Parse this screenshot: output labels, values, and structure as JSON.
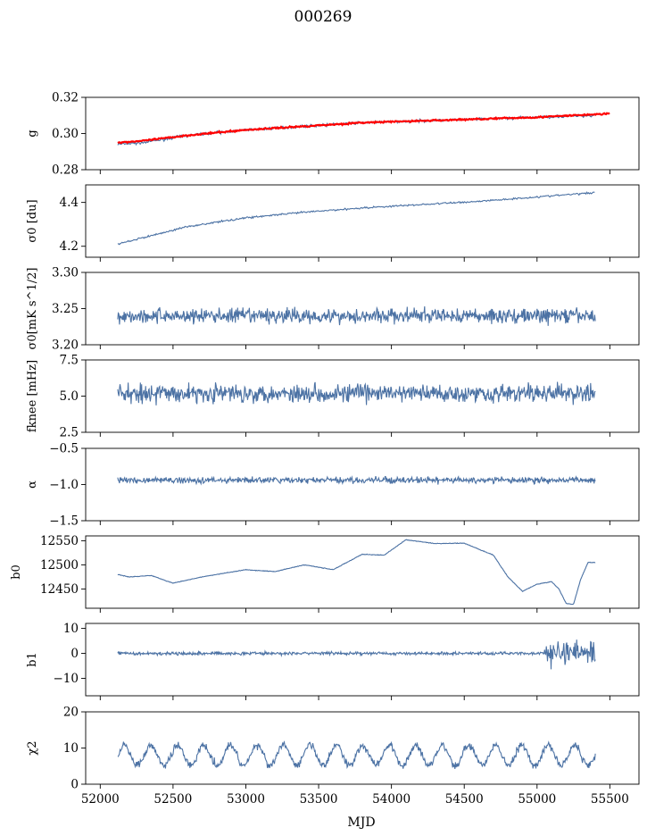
{
  "title": "000269",
  "colors": {
    "series": "#4c72a4",
    "model": "#ff0000",
    "axis": "#000000"
  },
  "chart_data": [
    {
      "type": "line",
      "ylabel": "g",
      "ylim": [
        0.28,
        0.32
      ],
      "yticks": [
        "0.28",
        "0.30",
        "0.32"
      ],
      "ytick_values": [
        0.28,
        0.3,
        0.32
      ],
      "series": [
        {
          "name": "g",
          "color": "#4c72a4",
          "x": [
            52120,
            52300,
            52600,
            53000,
            53400,
            53800,
            54200,
            54600,
            55000,
            55400
          ],
          "y": [
            0.294,
            0.295,
            0.299,
            0.302,
            0.304,
            0.306,
            0.307,
            0.308,
            0.309,
            0.31
          ]
        },
        {
          "name": "g fit",
          "color": "#ff0000",
          "x": [
            52120,
            52300,
            52600,
            53000,
            53400,
            53800,
            54200,
            54600,
            55000,
            55500
          ],
          "y": [
            0.295,
            0.296,
            0.299,
            0.302,
            0.304,
            0.306,
            0.307,
            0.308,
            0.309,
            0.311
          ]
        }
      ]
    },
    {
      "type": "line",
      "ylabel": "σ0 [du]",
      "ylim": [
        4.15,
        4.48
      ],
      "yticks": [
        "4.2",
        "4.4"
      ],
      "ytick_values": [
        4.2,
        4.4
      ],
      "series": [
        {
          "name": "sigma0",
          "color": "#4c72a4",
          "x": [
            52120,
            52300,
            52600,
            53000,
            53400,
            53800,
            54200,
            54600,
            55000,
            55400
          ],
          "y": [
            4.21,
            4.24,
            4.29,
            4.33,
            4.355,
            4.375,
            4.39,
            4.405,
            4.425,
            4.445
          ]
        }
      ]
    },
    {
      "type": "line",
      "ylabel": "σ0[mK s^1/2]",
      "ylim": [
        3.2,
        3.3
      ],
      "yticks": [
        "3.20",
        "3.25",
        "3.30"
      ],
      "ytick_values": [
        3.2,
        3.25,
        3.3
      ],
      "series": [
        {
          "name": "white noise",
          "color": "#4c72a4",
          "x": [
            52120,
            55400
          ],
          "mean": 3.24,
          "spread": 0.01
        }
      ]
    },
    {
      "type": "line",
      "ylabel": "fknee [mHz]",
      "ylim": [
        2.5,
        7.5
      ],
      "yticks": [
        "2.5",
        "5.0",
        "7.5"
      ],
      "ytick_values": [
        2.5,
        5.0,
        7.5
      ],
      "series": [
        {
          "name": "fknee",
          "color": "#4c72a4",
          "x": [
            52120,
            55400
          ],
          "mean": 5.2,
          "spread": 0.6
        }
      ]
    },
    {
      "type": "line",
      "ylabel": "α",
      "ylim": [
        -1.5,
        -0.5
      ],
      "yticks": [
        "−1.5",
        "−1.0",
        "−0.5"
      ],
      "ytick_values": [
        -1.5,
        -1.0,
        -0.5
      ],
      "series": [
        {
          "name": "alpha",
          "color": "#4c72a4",
          "x": [
            52120,
            55400
          ],
          "mean": -0.94,
          "spread": 0.04
        }
      ]
    },
    {
      "type": "line",
      "ylabel": "b0",
      "ylim": [
        12410,
        12560
      ],
      "yticks": [
        "12450",
        "12500",
        "12550"
      ],
      "ytick_values": [
        12450,
        12500,
        12550
      ],
      "series": [
        {
          "name": "b0",
          "color": "#4c72a4",
          "x": [
            52120,
            52200,
            52350,
            52500,
            52700,
            53000,
            53200,
            53400,
            53600,
            53800,
            53950,
            54100,
            54300,
            54500,
            54700,
            54800,
            54900,
            55000,
            55100,
            55150,
            55200,
            55250,
            55300,
            55350,
            55400
          ],
          "y": [
            12480,
            12475,
            12478,
            12462,
            12475,
            12490,
            12486,
            12500,
            12490,
            12522,
            12520,
            12552,
            12544,
            12545,
            12520,
            12475,
            12445,
            12460,
            12465,
            12450,
            12420,
            12418,
            12470,
            12505,
            12505
          ]
        }
      ]
    },
    {
      "type": "line",
      "ylabel": "b1",
      "ylim": [
        -17,
        12
      ],
      "yticks": [
        "−10",
        "0",
        "10"
      ],
      "ytick_values": [
        -10,
        0,
        10
      ],
      "series": [
        {
          "name": "b1",
          "color": "#4c72a4",
          "x": [
            52120,
            55400
          ],
          "mean": 0.0,
          "spread": 0.6
        }
      ]
    },
    {
      "type": "line",
      "ylabel": "χ2",
      "ylim": [
        0,
        20
      ],
      "yticks": [
        "0",
        "10",
        "20"
      ],
      "ytick_values": [
        0,
        10,
        20
      ],
      "series": [
        {
          "name": "chi2",
          "color": "#4c72a4",
          "x": [
            52120,
            55400
          ],
          "mean": 8.0,
          "amplitude": 2.8,
          "period_days": 182
        }
      ]
    }
  ],
  "xaxis": {
    "label": "MJD",
    "xlim": [
      51900,
      55700
    ],
    "ticks": [
      "52000",
      "52500",
      "53000",
      "53500",
      "54000",
      "54500",
      "55000",
      "55500"
    ],
    "tick_values": [
      52000,
      52500,
      53000,
      53500,
      54000,
      54500,
      55000,
      55500
    ]
  }
}
